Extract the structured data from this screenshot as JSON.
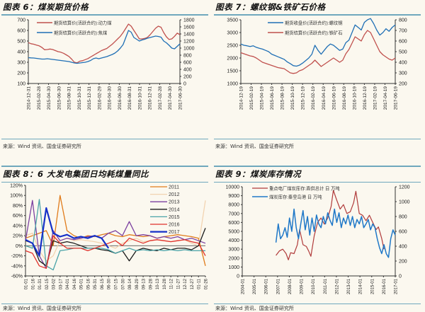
{
  "source_text": "来源：Wind 资讯、国金证券研究所",
  "chart_data": [
    {
      "id": "fig6",
      "type": "line",
      "title": "图表 6：煤炭期货价格",
      "xlabel": "",
      "ylabel_left": "",
      "ylabel_right": "",
      "ylim_left": [
        100,
        700
      ],
      "ylim_right": [
        0,
        1800
      ],
      "yticks_left": [
        "700",
        "600",
        "500",
        "400",
        "300",
        "200",
        "100"
      ],
      "yticks_right": [
        "1800",
        "1600",
        "1400",
        "1200",
        "1000",
        "800",
        "600",
        "400",
        "200",
        "0"
      ],
      "x_ticks": [
        "2014-12-31",
        "2015-02-28",
        "2015-04-30",
        "2015-06-30",
        "2015-08-31",
        "2015-10-31",
        "2015-12-31",
        "2016-02-29",
        "2016-04-30",
        "2016-06-30",
        "2016-08-31",
        "2016-10-31",
        "2016-12-31",
        "2017-02-28",
        "2017-04-30",
        "2017-06-30"
      ],
      "legend_position": "top-center",
      "series": [
        {
          "name": "期货结算价(活跃合约):动力煤",
          "axis": "left",
          "color": "#c0504d",
          "values": [
            485,
            475,
            470,
            462,
            455,
            440,
            418,
            420,
            425,
            420,
            410,
            400,
            395,
            385,
            370,
            355,
            330,
            300,
            295,
            310,
            315,
            325,
            335,
            350,
            365,
            380,
            395,
            410,
            420,
            430,
            450,
            470,
            495,
            520,
            545,
            580,
            620,
            660,
            640,
            600,
            560,
            520,
            520,
            525,
            535,
            560,
            590,
            620,
            640,
            630,
            580,
            540,
            515,
            520,
            545,
            575,
            560
          ]
        },
        {
          "name": "期货结算价(活跃合约):焦煤",
          "axis": "right",
          "color": "#1f6fb5",
          "values": [
            730,
            725,
            720,
            710,
            700,
            690,
            690,
            700,
            690,
            680,
            670,
            660,
            650,
            640,
            630,
            620,
            600,
            580,
            570,
            580,
            590,
            600,
            620,
            650,
            700,
            720,
            700,
            720,
            740,
            760,
            790,
            820,
            860,
            920,
            1000,
            1100,
            1300,
            1500,
            1450,
            1300,
            1250,
            1200,
            1230,
            1250,
            1280,
            1300,
            1320,
            1340,
            1330,
            1310,
            1200,
            1150,
            1080,
            1000,
            980,
            1050,
            1120
          ]
        }
      ]
    },
    {
      "id": "fig7",
      "type": "line",
      "title": "图表 7：螺纹钢&铁矿石价格",
      "xlabel": "",
      "ylim_left": [
        1000,
        3500
      ],
      "ylim_right": [
        200,
        800
      ],
      "yticks_left": [
        "3500",
        "3000",
        "2500",
        "2000",
        "1500",
        "1000"
      ],
      "yticks_right": [
        "800",
        "700",
        "600",
        "500",
        "400",
        "300",
        "200"
      ],
      "x_ticks": [
        "2014-12-19",
        "2015-02-19",
        "2015-04-19",
        "2015-06-19",
        "2015-08-19",
        "2015-10-19",
        "2015-12-19",
        "2016-02-19",
        "2016-04-19",
        "2016-06-19",
        "2016-08-19",
        "2016-10-19",
        "2016-12-19",
        "2017-02-19",
        "2017-04-19",
        "2017-06-19"
      ],
      "legend_position": "top-center",
      "series": [
        {
          "name": "期货收盘价(活跃合约):螺纹钢",
          "axis": "left",
          "color": "#1f6fb5",
          "values": [
            2550,
            2500,
            2480,
            2450,
            2480,
            2420,
            2380,
            2350,
            2300,
            2250,
            2150,
            2100,
            2050,
            2000,
            1950,
            1850,
            1780,
            1700,
            1680,
            1720,
            1800,
            1900,
            2000,
            2150,
            2500,
            2300,
            2150,
            2300,
            2450,
            2550,
            2500,
            2400,
            2300,
            2350,
            2600,
            2700,
            3000,
            3300,
            3200,
            3100,
            3400,
            3500,
            3550,
            3350,
            3100,
            2900,
            3000,
            3150,
            3050,
            3200,
            3300
          ]
        },
        {
          "name": "期货结算价(活跃合约):铁矿石",
          "axis": "right",
          "color": "#c0504d",
          "values": [
            490,
            480,
            470,
            460,
            455,
            440,
            420,
            400,
            390,
            380,
            370,
            360,
            350,
            345,
            340,
            320,
            300,
            295,
            300,
            320,
            330,
            350,
            370,
            390,
            420,
            390,
            360,
            380,
            400,
            420,
            440,
            420,
            400,
            420,
            480,
            520,
            580,
            640,
            620,
            600,
            660,
            700,
            680,
            620,
            560,
            500,
            470,
            450,
            430,
            420,
            440
          ]
        }
      ]
    },
    {
      "id": "fig8",
      "type": "line",
      "title": "图表 8：6 大发电集团日均耗煤量同比",
      "xlabel": "",
      "ylim": [
        -60,
        120
      ],
      "y_unit": "%",
      "yticks": [
        "120%",
        "100%",
        "80%",
        "60%",
        "40%",
        "20%",
        "0%",
        "-20%",
        "-40%",
        "-60%"
      ],
      "x_ticks": [
        "01-01",
        "01-16",
        "01-31",
        "02-15",
        "03-02",
        "03-17",
        "04-01",
        "04-16",
        "05-01",
        "05-16",
        "05-31",
        "06-15",
        "06-30",
        "07-15",
        "07-30",
        "08-14",
        "08-29",
        "09-13",
        "09-28",
        "10-13",
        "10-28",
        "11-12",
        "11-27",
        "12-12",
        "12-27",
        "01-11",
        "01-26"
      ],
      "legend_position": "top-right",
      "series": [
        {
          "name": "2011",
          "color": "#e07b1a",
          "values": [
            15,
            20,
            25,
            30,
            0,
            100,
            30,
            20,
            15,
            20,
            18,
            22,
            25,
            20,
            18,
            22,
            20,
            18,
            20,
            15,
            18,
            20,
            22,
            20,
            18,
            15,
            -40
          ]
        },
        {
          "name": "2012",
          "color": "#f2d3b0",
          "values": [
            20,
            25,
            -10,
            -30,
            -20,
            10,
            15,
            10,
            12,
            10,
            8,
            5,
            0,
            -5,
            5,
            10,
            15,
            8,
            10,
            12,
            10,
            8,
            10,
            12,
            5,
            0,
            90
          ]
        },
        {
          "name": "2013",
          "color": "#7b3fa0",
          "values": [
            10,
            90,
            -20,
            -45,
            30,
            10,
            15,
            12,
            15,
            18,
            20,
            15,
            25,
            30,
            20,
            48,
            20,
            22,
            20,
            15,
            18,
            15,
            18,
            12,
            15,
            10,
            5
          ]
        },
        {
          "name": "2014",
          "color": "#1a1a1a",
          "values": [
            10,
            5,
            -30,
            -40,
            10,
            5,
            8,
            5,
            0,
            -5,
            -5,
            -8,
            -10,
            -15,
            -10,
            -30,
            -10,
            -5,
            -8,
            -10,
            -5,
            -8,
            -5,
            -5,
            -8,
            0,
            35
          ]
        },
        {
          "name": "2015",
          "color": "#4aa3a8",
          "values": [
            0,
            -5,
            92,
            -40,
            -48,
            -10,
            -8,
            -5,
            -5,
            -5,
            -5,
            -5,
            -8,
            -15,
            -10,
            -5,
            -10,
            -8,
            -10,
            -8,
            -10,
            -8,
            -10,
            -8,
            -10,
            -10,
            -10
          ]
        },
        {
          "name": "2016",
          "color": "#e0302a",
          "values": [
            -10,
            -15,
            -40,
            -45,
            20,
            5,
            -5,
            -5,
            -5,
            -10,
            -5,
            0,
            5,
            10,
            0,
            15,
            10,
            5,
            10,
            12,
            10,
            8,
            10,
            12,
            8,
            5,
            -20
          ]
        },
        {
          "name": "2017",
          "color": "#1530c8",
          "values": [
            12,
            5,
            -20,
            75,
            25,
            18,
            22,
            15,
            18,
            15,
            20,
            15,
            -5
          ]
        }
      ]
    },
    {
      "id": "fig9",
      "type": "line",
      "title": "图表 9：煤炭库存情况",
      "xlabel": "",
      "ylim_left": [
        0,
        10000
      ],
      "ylim_right": [
        0,
        1200
      ],
      "yticks_left": [
        "10000",
        "9000",
        "8000",
        "7000",
        "6000",
        "5000",
        "4000",
        "3000",
        "2000",
        "1000",
        "0"
      ],
      "yticks_right": [
        "1200",
        "1000",
        "800",
        "600",
        "400",
        "200",
        "0"
      ],
      "x_ticks": [
        "2004-01",
        "2005-01",
        "2006-01",
        "2007-01",
        "2008-01",
        "2009-01",
        "2010-01",
        "2011-01",
        "2012-01",
        "2013-01",
        "2014-01",
        "2015-01",
        "2016-01",
        "2017-01"
      ],
      "legend_position": "top-center",
      "series": [
        {
          "name": "重点电厂煤炭库存:直供总计 日 万吨",
          "axis": "left",
          "color": "#b03a3a",
          "x": [
            2007.0,
            2007.3,
            2007.6,
            2007.9,
            2008.1,
            2008.3,
            2008.6,
            2008.9,
            2009.1,
            2009.4,
            2009.7,
            2009.9,
            2010.1,
            2010.4,
            2010.7,
            2011.0,
            2011.3,
            2011.6,
            2011.9,
            2012.1,
            2012.4,
            2012.7,
            2013.0,
            2013.3,
            2013.6,
            2013.9,
            2014.1,
            2014.4,
            2014.7,
            2015.0,
            2015.3,
            2015.6,
            2015.9,
            2016.1,
            2016.4,
            2016.6
          ],
          "values": [
            2300,
            2800,
            3000,
            2500,
            1800,
            2600,
            2500,
            3500,
            5200,
            3500,
            3300,
            2800,
            2200,
            4500,
            6000,
            6500,
            5800,
            6500,
            7800,
            9600,
            8500,
            7500,
            8000,
            7000,
            7200,
            8200,
            9500,
            7000,
            6800,
            6200,
            6800,
            6000,
            5200,
            5500,
            4200,
            3000
          ]
        },
        {
          "name": "煤炭库存:秦皇岛港 日 万吨",
          "axis": "right",
          "color": "#1f78c8",
          "x": [
            2007.0,
            2007.2,
            2007.4,
            2007.6,
            2007.8,
            2008.0,
            2008.2,
            2008.4,
            2008.6,
            2008.8,
            2009.0,
            2009.2,
            2009.4,
            2009.6,
            2009.8,
            2010.0,
            2010.2,
            2010.4,
            2010.6,
            2010.8,
            2011.0,
            2011.2,
            2011.4,
            2011.6,
            2011.8,
            2012.0,
            2012.2,
            2012.4,
            2012.6,
            2012.8,
            2013.0,
            2013.2,
            2013.4,
            2013.6,
            2013.8,
            2014.0,
            2014.2,
            2014.4,
            2014.6,
            2014.8,
            2015.0,
            2015.2,
            2015.4,
            2015.6,
            2015.8,
            2016.0,
            2016.2,
            2016.4,
            2016.6,
            2016.8,
            2017.0,
            2017.2,
            2017.4,
            2017.6
          ],
          "values": [
            450,
            700,
            500,
            550,
            650,
            520,
            780,
            600,
            900,
            650,
            500,
            700,
            880,
            620,
            800,
            550,
            780,
            600,
            820,
            700,
            650,
            800,
            700,
            850,
            750,
            680,
            900,
            720,
            850,
            650,
            780,
            700,
            820,
            680,
            800,
            650,
            760,
            700,
            800,
            650,
            700,
            760,
            620,
            700,
            650,
            500,
            380,
            300,
            420,
            300,
            250,
            500,
            620,
            550
          ]
        }
      ]
    }
  ]
}
